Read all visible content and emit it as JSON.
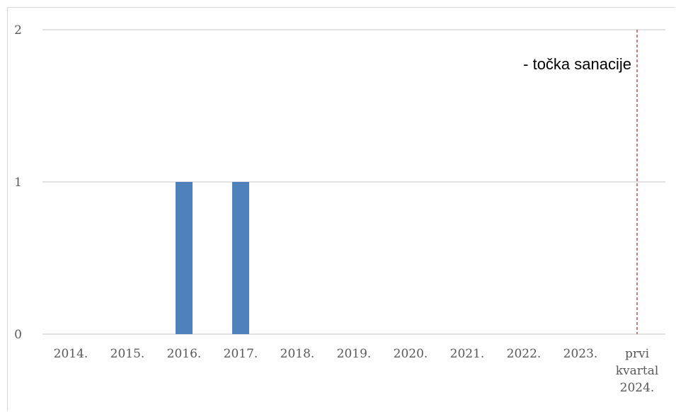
{
  "chart_data": {
    "type": "bar",
    "categories": [
      "2014.",
      "2015.",
      "2016.",
      "2017.",
      "2018.",
      "2019.",
      "2020.",
      "2021.",
      "2022.",
      "2023.",
      "prvi kvartal 2024."
    ],
    "category_lines": [
      [
        "2014."
      ],
      [
        "2015."
      ],
      [
        "2016."
      ],
      [
        "2017."
      ],
      [
        "2018."
      ],
      [
        "2019."
      ],
      [
        "2020."
      ],
      [
        "2021."
      ],
      [
        "2022."
      ],
      [
        "2023."
      ],
      [
        "prvi",
        "kvartal",
        "2024."
      ]
    ],
    "values": [
      0,
      0,
      1,
      1,
      0,
      0,
      0,
      0,
      0,
      0,
      0
    ],
    "ylim": [
      0,
      2
    ],
    "yticks": [
      "0",
      "1",
      "2"
    ],
    "grid": true,
    "bar_color": "#4f81bd",
    "grid_color": "#d9d9d9",
    "marker_line": {
      "category_index": 10,
      "color": "#c0504d",
      "style": "dashed"
    },
    "annotation": "- točka sanacije",
    "title": "",
    "xlabel": "",
    "ylabel": ""
  }
}
